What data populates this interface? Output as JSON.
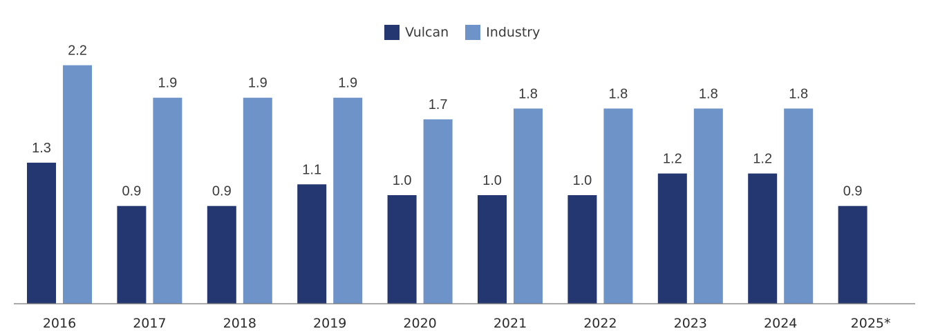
{
  "chart_data": {
    "type": "bar",
    "title": "",
    "xlabel": "",
    "ylabel": "",
    "ylim": [
      0,
      2.25
    ],
    "grid": false,
    "legend_position": "top-center",
    "categories": [
      "2016",
      "2017",
      "2018",
      "2019",
      "2020",
      "2021",
      "2022",
      "2023",
      "2024",
      "2025*"
    ],
    "series": [
      {
        "name": "Vulcan",
        "color": "#243770",
        "values": [
          1.3,
          0.9,
          0.9,
          1.1,
          1.0,
          1.0,
          1.0,
          1.2,
          1.2,
          0.9
        ],
        "labels": [
          "1.3",
          "0.9",
          "0.9",
          "1.1",
          "1.0",
          "1.0",
          "1.0",
          "1.2",
          "1.2",
          "0.9"
        ]
      },
      {
        "name": "Industry",
        "color": "#6e93c8",
        "values": [
          2.2,
          1.9,
          1.9,
          1.9,
          1.7,
          1.8,
          1.8,
          1.8,
          1.8,
          null
        ],
        "labels": [
          "2.2",
          "1.9",
          "1.9",
          "1.9",
          "1.7",
          "1.8",
          "1.8",
          "1.8",
          "1.8",
          null
        ]
      }
    ]
  },
  "axis": {
    "color": "#8a8a8a"
  }
}
